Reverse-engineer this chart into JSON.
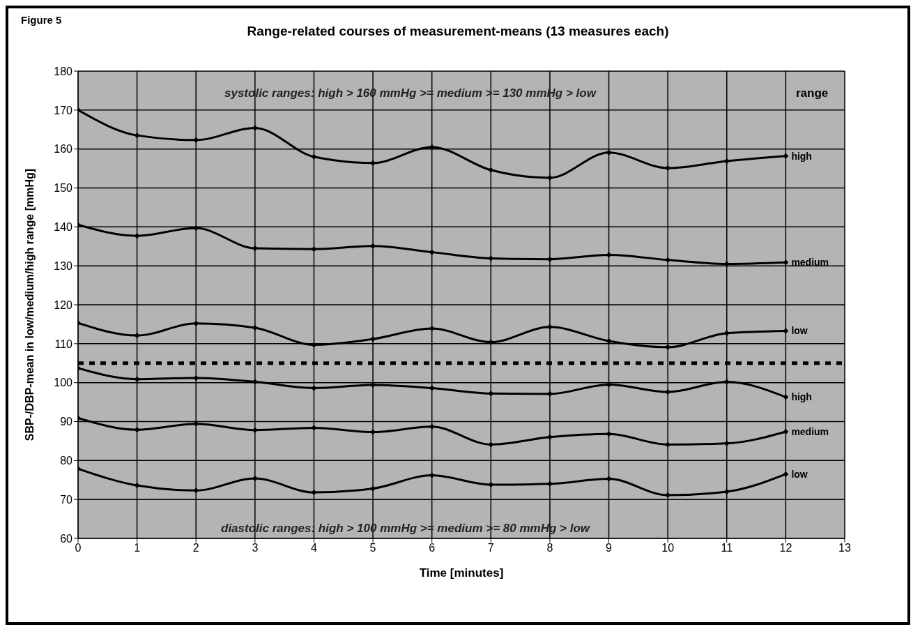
{
  "chart_data": {
    "type": "line",
    "title": "Range-related courses of measurement-means (13 measures each)",
    "xlabel": "Time [minutes]",
    "ylabel": "SBP-/DBP-mean in low/medium/high range [mmHg]",
    "x": [
      0,
      1,
      2,
      3,
      4,
      5,
      6,
      7,
      8,
      9,
      10,
      11,
      12
    ],
    "series": [
      {
        "name": "high",
        "color": "#000000",
        "values": [
          170,
          163.5,
          162.3,
          165.4,
          158,
          156.4,
          160.5,
          154.6,
          152.6,
          159.1,
          155.1,
          156.9,
          158.2
        ]
      },
      {
        "name": "medium",
        "color": "#000000",
        "values": [
          140.5,
          137.7,
          139.7,
          134.5,
          134.3,
          135.1,
          133.5,
          131.9,
          131.7,
          132.8,
          131.5,
          130.5,
          130.9
        ]
      },
      {
        "name": "low",
        "color": "#000000",
        "values": [
          115.3,
          112.1,
          115.2,
          114.1,
          109.7,
          111.2,
          113.9,
          110.4,
          114.3,
          110.7,
          109.1,
          112.7,
          113.3
        ]
      },
      {
        "name": "high",
        "color": "#000000",
        "values": [
          103.7,
          100.9,
          101.2,
          100.2,
          98.6,
          99.4,
          98.6,
          97.2,
          97.1,
          99.5,
          97.6,
          100.2,
          96.3
        ]
      },
      {
        "name": "medium",
        "color": "#000000",
        "values": [
          90.9,
          87.9,
          89.4,
          87.8,
          88.4,
          87.3,
          88.7,
          84.1,
          86.0,
          86.8,
          84.1,
          84.4,
          87.4
        ]
      },
      {
        "name": "low",
        "color": "#000000",
        "values": [
          77.9,
          73.6,
          72.3,
          75.4,
          71.8,
          72.8,
          76.2,
          73.8,
          74.0,
          75.3,
          71.1,
          72.0,
          76.5
        ]
      }
    ],
    "xlim": [
      0,
      13
    ],
    "xticks": [
      0,
      1,
      2,
      3,
      4,
      5,
      6,
      7,
      8,
      9,
      10,
      11,
      12,
      13
    ],
    "ylim": [
      60,
      180
    ],
    "yticks": [
      60,
      70,
      80,
      90,
      100,
      110,
      120,
      130,
      140,
      150,
      160,
      170,
      180
    ],
    "ref_lines": [
      {
        "axis": "y",
        "value": 105,
        "color": "#000000",
        "line_style": "dashed"
      }
    ],
    "annotations": [
      "Figure 5",
      "systolic ranges:  high > 160 mmHg >= medium >= 130 mmHg > low",
      "diastolic ranges:  high > 100 mmHg >= medium >= 80 mmHg > low",
      "range"
    ],
    "grid": true,
    "marker": "diamond",
    "line_style": "solid"
  }
}
